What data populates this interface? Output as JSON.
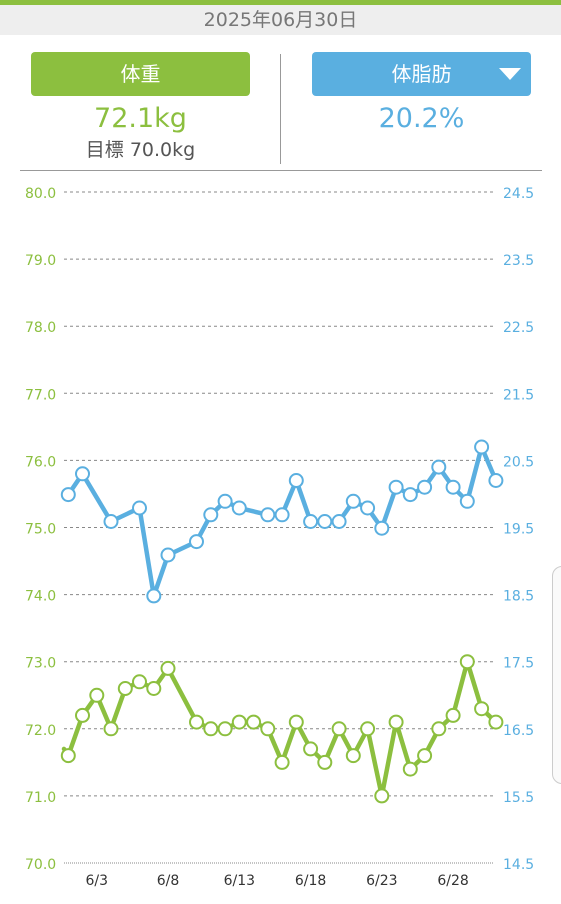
{
  "header": {
    "date": "2025年06月30日"
  },
  "weight_panel": {
    "label": "体重",
    "value": "72.1kg",
    "goal": "目標 70.0kg"
  },
  "fat_panel": {
    "label": "体脂肪",
    "value": "20.2%",
    "dropdown_icon": "caret-down-icon"
  },
  "colors": {
    "accent_green": "#8cbf3f",
    "accent_blue": "#5aafe0"
  },
  "chart_data": {
    "type": "line",
    "x_tick_labels": [
      "6/3",
      "6/8",
      "6/13",
      "6/18",
      "6/23",
      "6/28"
    ],
    "x_tick_days": [
      3,
      8,
      13,
      18,
      23,
      28
    ],
    "x_range": [
      0.7,
      30.8
    ],
    "y_left_ticks": [
      "80.0",
      "79.0",
      "78.0",
      "77.0",
      "76.0",
      "75.0",
      "74.0",
      "73.0",
      "72.0",
      "71.0",
      "70.0"
    ],
    "y_left_range": [
      70.0,
      80.0
    ],
    "y_right_ticks": [
      "24.5",
      "23.5",
      "22.5",
      "21.5",
      "20.5",
      "19.5",
      "18.5",
      "17.5",
      "16.5",
      "15.5",
      "14.5"
    ],
    "y_right_range": [
      14.5,
      24.5
    ],
    "grid": true,
    "series": [
      {
        "axis": "right",
        "color": "#5aafe0",
        "leading_from": 19.99,
        "points": [
          [
            1,
            19.99
          ],
          [
            2,
            20.3
          ],
          [
            4,
            19.59
          ],
          [
            6,
            19.79
          ],
          [
            7,
            18.48
          ],
          [
            8,
            19.09
          ],
          [
            10,
            19.29
          ],
          [
            11,
            19.69
          ],
          [
            12,
            19.89
          ],
          [
            13,
            19.79
          ],
          [
            15,
            19.69
          ],
          [
            16,
            19.69
          ],
          [
            17,
            20.2
          ],
          [
            18,
            19.59
          ],
          [
            19,
            19.59
          ],
          [
            20,
            19.59
          ],
          [
            21,
            19.89
          ],
          [
            22,
            19.79
          ],
          [
            23,
            19.49
          ],
          [
            24,
            20.1
          ],
          [
            25,
            19.99
          ],
          [
            26,
            20.1
          ],
          [
            27,
            20.4
          ],
          [
            28,
            20.1
          ],
          [
            29,
            19.89
          ],
          [
            30,
            20.7
          ],
          [
            31,
            20.2
          ]
        ]
      },
      {
        "axis": "left",
        "color": "#8cbf3f",
        "leading_from": 71.7,
        "points": [
          [
            1,
            71.6
          ],
          [
            2,
            72.2
          ],
          [
            3,
            72.5
          ],
          [
            4,
            72.0
          ],
          [
            5,
            72.6
          ],
          [
            6,
            72.7
          ],
          [
            7,
            72.6
          ],
          [
            8,
            72.9
          ],
          [
            10,
            72.1
          ],
          [
            11,
            72.0
          ],
          [
            12,
            72.0
          ],
          [
            13,
            72.1
          ],
          [
            14,
            72.1
          ],
          [
            15,
            72.0
          ],
          [
            16,
            71.5
          ],
          [
            17,
            72.1
          ],
          [
            18,
            71.7
          ],
          [
            19,
            71.5
          ],
          [
            20,
            72.0
          ],
          [
            21,
            71.6
          ],
          [
            22,
            72.0
          ],
          [
            23,
            71.0
          ],
          [
            24,
            72.1
          ],
          [
            25,
            71.4
          ],
          [
            26,
            71.6
          ],
          [
            27,
            72.0
          ],
          [
            28,
            72.2
          ],
          [
            29,
            73.0
          ],
          [
            30,
            72.3
          ],
          [
            31,
            72.1
          ]
        ]
      }
    ]
  }
}
